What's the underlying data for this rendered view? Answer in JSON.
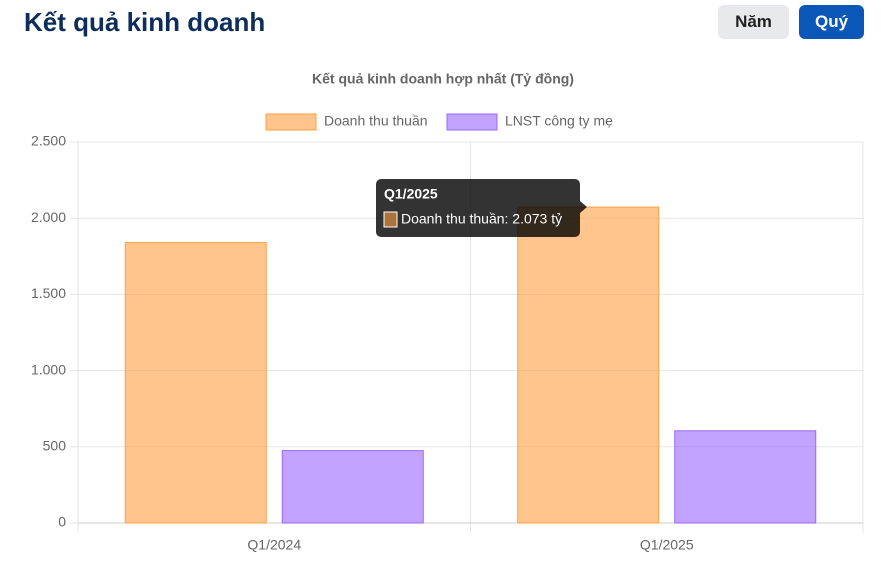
{
  "header": {
    "title": "Kết quả kinh doanh",
    "buttons": [
      "Năm",
      "Quý"
    ]
  },
  "chart_data": {
    "type": "bar",
    "title": "Kết quả kinh doanh hợp nhất (Tỷ đồng)",
    "categories": [
      "Q1/2024",
      "Q1/2025"
    ],
    "series": [
      {
        "name": "Doanh thu thuần",
        "color": "#ff9f40",
        "values": [
          1840,
          2073
        ]
      },
      {
        "name": "LNST công ty mẹ",
        "color": "#9966ff",
        "values": [
          475,
          605
        ]
      }
    ],
    "ylim": [
      0,
      2500
    ],
    "yticks": [
      0,
      500,
      {
        "value": 1000,
        "label": "1.000"
      },
      {
        "value": 1500,
        "label": "1.500"
      },
      {
        "value": 2000,
        "label": "2.000"
      },
      {
        "value": 2500,
        "label": "2.500"
      }
    ],
    "grid": true,
    "legend": "top",
    "tooltip": {
      "title": "Q1/2025",
      "label": "Doanh thu thuần: 2.073 tỷ"
    }
  }
}
